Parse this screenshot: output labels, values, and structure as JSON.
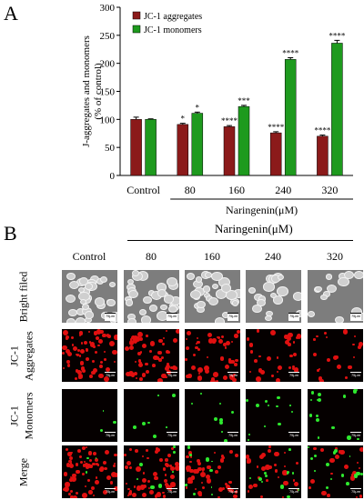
{
  "panel_a_label": "A",
  "panel_b_label": "B",
  "chart_data": {
    "type": "bar",
    "ylabel_line1": "J-aggregates and  monomers",
    "ylabel_line2": "(% of control)",
    "ylim": [
      0,
      300
    ],
    "yticks": [
      "0",
      "50",
      "100",
      "150",
      "200",
      "250",
      "300"
    ],
    "categories": [
      "Control",
      "80",
      "160",
      "240",
      "320"
    ],
    "treatment_label": "Naringenin(μM)",
    "series": [
      {
        "name": "JC-1 aggregates",
        "color": "#8b1a1a",
        "values": [
          100,
          91,
          87,
          76,
          70
        ],
        "errors": [
          4,
          2,
          2,
          2,
          2
        ],
        "sig": [
          "",
          "*",
          "****",
          "****",
          "****"
        ]
      },
      {
        "name": "JC-1 monomers",
        "color": "#1e9a1e",
        "values": [
          100,
          111,
          123,
          207,
          236
        ],
        "errors": [
          1,
          2,
          2,
          3,
          5
        ],
        "sig": [
          "",
          "*",
          "***",
          "****",
          "****"
        ]
      }
    ]
  },
  "panel_b": {
    "treatment_label": "Naringenin(μM)",
    "columns": [
      "Control",
      "80",
      "160",
      "240",
      "320"
    ],
    "rows": [
      {
        "line1": "Bright filed",
        "line2": ""
      },
      {
        "line1": "JC-1",
        "line2": "Aggregates"
      },
      {
        "line1": "JC-1",
        "line2": "Monomers"
      },
      {
        "line1": "",
        "line2": "Merge"
      }
    ],
    "scale_label": "75μm"
  }
}
